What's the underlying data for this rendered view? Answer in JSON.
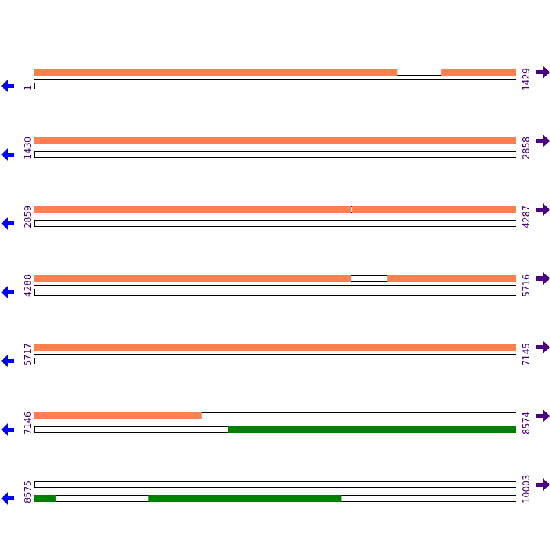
{
  "colors": {
    "forward_feature": "#FF7F50",
    "reverse_feature": "#008000",
    "track_outline": "#000000",
    "left_arrow": "#0000FF",
    "right_arrow": "#4B0082",
    "label": "#4B0082"
  },
  "icons": {
    "left": "arrow-left-icon",
    "right": "arrow-right-icon"
  },
  "segments": [
    {
      "start": "1",
      "end": "1429",
      "top": {
        "fill": [
          [
            1,
            1077
          ],
          [
            1208,
            1429
          ]
        ]
      },
      "bottom": {
        "fill": []
      }
    },
    {
      "start": "1430",
      "end": "2858",
      "top": {
        "fill": [
          [
            1430,
            2858
          ]
        ]
      },
      "bottom": {
        "fill": []
      }
    },
    {
      "start": "2859",
      "end": "4287",
      "top": {
        "fill": [
          [
            2859,
            3796
          ],
          [
            3801,
            4287
          ]
        ]
      },
      "bottom": {
        "fill": []
      }
    },
    {
      "start": "4288",
      "end": "5716",
      "top": {
        "fill": [
          [
            4288,
            5227
          ],
          [
            5334,
            5716
          ]
        ]
      },
      "bottom": {
        "fill": []
      }
    },
    {
      "start": "5717",
      "end": "7145",
      "top": {
        "fill": [
          [
            5717,
            7145
          ]
        ]
      },
      "bottom": {
        "fill": []
      }
    },
    {
      "start": "7146",
      "end": "8574",
      "top": {
        "fill": [
          [
            7146,
            7642
          ]
        ]
      },
      "bottom": {
        "fill": [
          [
            7720,
            8574
          ]
        ]
      }
    },
    {
      "start": "8575",
      "end": "10003",
      "top": {
        "fill": []
      },
      "bottom": {
        "fill": [
          [
            8575,
            8637
          ],
          [
            8914,
            9484
          ]
        ]
      }
    }
  ]
}
